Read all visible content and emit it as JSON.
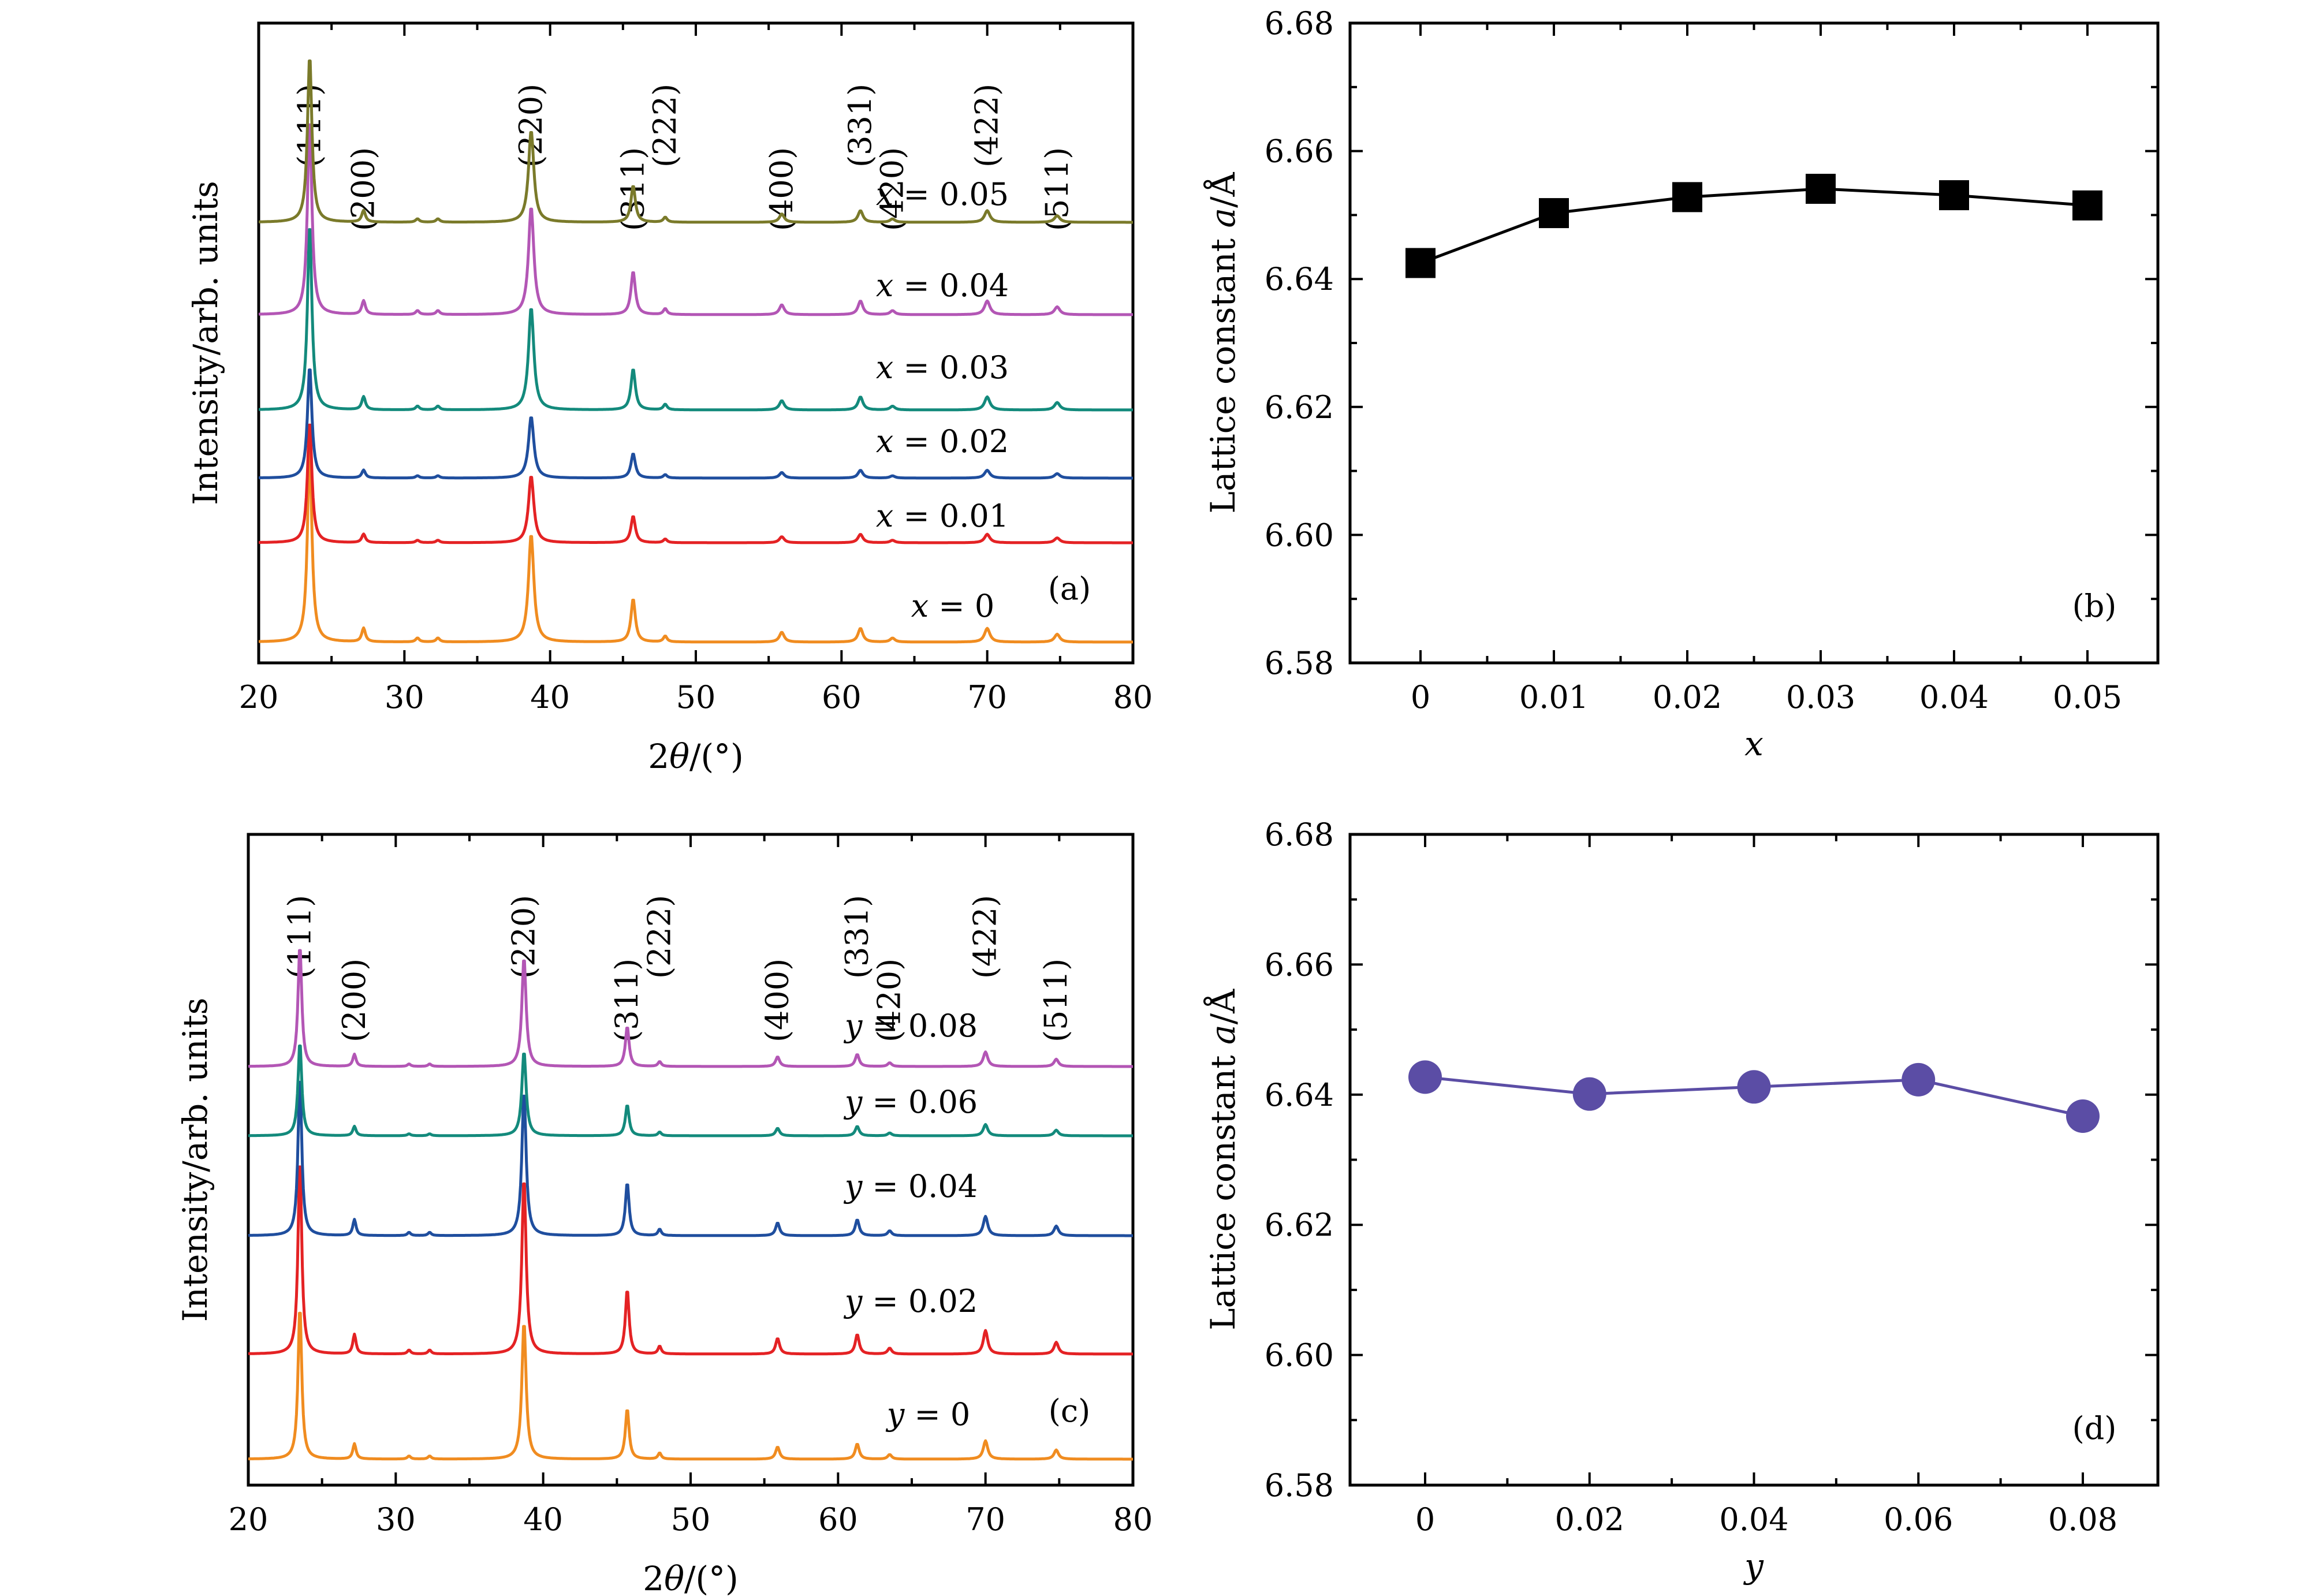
{
  "chart_data": [
    {
      "id": "a",
      "type": "line",
      "panel_label": "(a)",
      "xlabel": "2θ/(°)",
      "ylabel": "Intensity/arb. units",
      "xlim": [
        20,
        80
      ],
      "xticks": [
        20,
        30,
        40,
        50,
        60,
        70,
        80
      ],
      "hkl": [
        {
          "label": "(111)",
          "x": 23.5
        },
        {
          "label": "(200)",
          "x": 27.2
        },
        {
          "label": "(220)",
          "x": 38.7
        },
        {
          "label": "(311)",
          "x": 45.7
        },
        {
          "label": "(222)",
          "x": 47.9
        },
        {
          "label": "(400)",
          "x": 55.9
        },
        {
          "label": "(331)",
          "x": 61.3
        },
        {
          "label": "(420)",
          "x": 63.5
        },
        {
          "label": "(422)",
          "x": 70.0
        },
        {
          "label": "(511)",
          "x": 74.8
        }
      ],
      "peaks": [
        {
          "x": 23.5,
          "h": 1.0,
          "w": 0.18
        },
        {
          "x": 27.2,
          "h": 0.07,
          "w": 0.15
        },
        {
          "x": 30.9,
          "h": 0.02,
          "w": 0.15
        },
        {
          "x": 32.3,
          "h": 0.02,
          "w": 0.15
        },
        {
          "x": 38.7,
          "h": 0.55,
          "w": 0.22
        },
        {
          "x": 45.7,
          "h": 0.22,
          "w": 0.18
        },
        {
          "x": 47.9,
          "h": 0.03,
          "w": 0.15
        },
        {
          "x": 55.9,
          "h": 0.05,
          "w": 0.2
        },
        {
          "x": 61.3,
          "h": 0.07,
          "w": 0.2
        },
        {
          "x": 63.5,
          "h": 0.02,
          "w": 0.2
        },
        {
          "x": 70.0,
          "h": 0.07,
          "w": 0.22
        },
        {
          "x": 74.8,
          "h": 0.04,
          "w": 0.22
        }
      ],
      "series": [
        {
          "name": "x = 0",
          "color": "#F08C20",
          "amp": 1.0
        },
        {
          "name": "x = 0.01",
          "color": "#E42224",
          "amp": 0.62
        },
        {
          "name": "x = 0.02",
          "color": "#1F4E9E",
          "amp": 0.57
        },
        {
          "name": "x = 0.03",
          "color": "#138A7C",
          "amp": 0.95
        },
        {
          "name": "x = 0.04",
          "color": "#B356B5",
          "amp": 1.0
        },
        {
          "name": "x = 0.05",
          "color": "#7A7A2A",
          "amp": 0.85
        }
      ]
    },
    {
      "id": "b",
      "type": "line",
      "panel_label": "(b)",
      "xlabel": "x",
      "ylabel": "Lattice constant a/Å",
      "ylim": [
        6.58,
        6.68
      ],
      "yticks": [
        "6.58",
        "6.60",
        "6.62",
        "6.64",
        "6.66",
        "6.68"
      ],
      "xticks": [
        "0",
        "0.01",
        "0.02",
        "0.03",
        "0.04",
        "0.05"
      ],
      "x": [
        0,
        0.01,
        0.02,
        0.03,
        0.04,
        0.05
      ],
      "y": [
        6.6425,
        6.6503,
        6.6528,
        6.6541,
        6.6531,
        6.6515
      ],
      "marker": "square",
      "color": "#000000"
    },
    {
      "id": "c",
      "type": "line",
      "panel_label": "(c)",
      "xlabel": "2θ/(°)",
      "ylabel": "Intensity/arb. units",
      "xlim": [
        20,
        80
      ],
      "xticks": [
        20,
        30,
        40,
        50,
        60,
        70,
        80
      ],
      "hkl": [
        {
          "label": "(111)",
          "x": 23.5
        },
        {
          "label": "(200)",
          "x": 27.2
        },
        {
          "label": "(220)",
          "x": 38.7
        },
        {
          "label": "(311)",
          "x": 45.7
        },
        {
          "label": "(222)",
          "x": 47.9
        },
        {
          "label": "(400)",
          "x": 55.9
        },
        {
          "label": "(331)",
          "x": 61.3
        },
        {
          "label": "(420)",
          "x": 63.5
        },
        {
          "label": "(422)",
          "x": 70.0
        },
        {
          "label": "(511)",
          "x": 74.8
        }
      ],
      "peaks": [
        {
          "x": 23.5,
          "h": 1.0,
          "w": 0.15
        },
        {
          "x": 27.2,
          "h": 0.1,
          "w": 0.13
        },
        {
          "x": 30.9,
          "h": 0.02,
          "w": 0.13
        },
        {
          "x": 32.3,
          "h": 0.02,
          "w": 0.13
        },
        {
          "x": 38.7,
          "h": 0.9,
          "w": 0.17
        },
        {
          "x": 45.7,
          "h": 0.33,
          "w": 0.15
        },
        {
          "x": 47.9,
          "h": 0.04,
          "w": 0.13
        },
        {
          "x": 55.9,
          "h": 0.08,
          "w": 0.16
        },
        {
          "x": 61.3,
          "h": 0.1,
          "w": 0.16
        },
        {
          "x": 63.5,
          "h": 0.03,
          "w": 0.16
        },
        {
          "x": 70.0,
          "h": 0.12,
          "w": 0.18
        },
        {
          "x": 74.8,
          "h": 0.06,
          "w": 0.18
        }
      ],
      "series": [
        {
          "name": "y = 0",
          "color": "#F08C20",
          "amp": 0.78
        },
        {
          "name": "y = 0.02",
          "color": "#E42224",
          "amp": 1.0
        },
        {
          "name": "y = 0.04",
          "color": "#1F4E9E",
          "amp": 0.82
        },
        {
          "name": "y = 0.06",
          "color": "#138A7C",
          "amp": 0.48
        },
        {
          "name": "y = 0.08",
          "color": "#B356B5",
          "amp": 0.62
        }
      ]
    },
    {
      "id": "d",
      "type": "line",
      "panel_label": "(d)",
      "xlabel": "y",
      "ylabel": "Lattice constant a/Å",
      "ylim": [
        6.58,
        6.68
      ],
      "yticks": [
        "6.58",
        "6.60",
        "6.62",
        "6.64",
        "6.66",
        "6.68"
      ],
      "xticks": [
        "0",
        "0.02",
        "0.04",
        "0.06",
        "0.08"
      ],
      "x": [
        0,
        0.02,
        0.04,
        0.06,
        0.08
      ],
      "y": [
        6.6427,
        6.6401,
        6.6412,
        6.6423,
        6.6367
      ],
      "marker": "circle",
      "color": "#5B4DA5"
    }
  ]
}
